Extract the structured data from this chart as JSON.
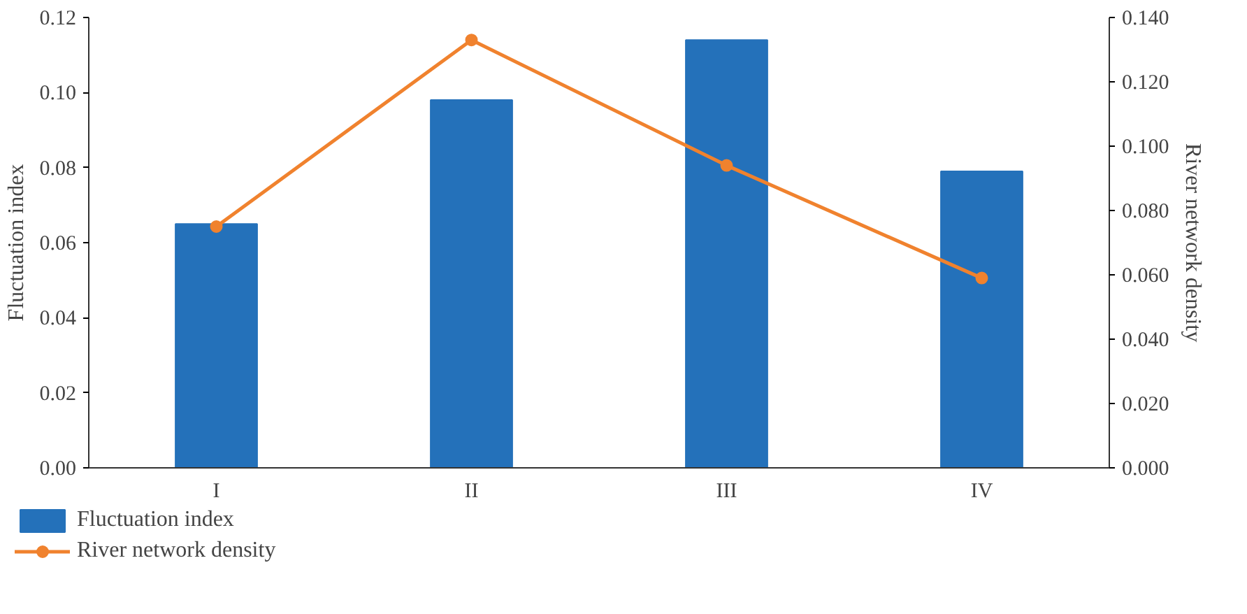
{
  "chart_data": {
    "type": "bar",
    "categories": [
      "I",
      "II",
      "III",
      "IV"
    ],
    "ylabel": "Fluctuation index",
    "y2label": "River network density",
    "ylim": [
      0,
      0.12
    ],
    "yticks": [
      {
        "value": 0,
        "label": "0.00"
      },
      {
        "value": 0.02,
        "label": "0.02"
      },
      {
        "value": 0.04,
        "label": "0.04"
      },
      {
        "value": 0.06,
        "label": "0.06"
      },
      {
        "value": 0.08,
        "label": "0.08"
      },
      {
        "value": 0.1,
        "label": "0.10"
      },
      {
        "value": 0.12,
        "label": "0.12"
      }
    ],
    "y2lim": [
      0,
      0.14
    ],
    "y2ticks": [
      {
        "value": 0,
        "label": "0.000"
      },
      {
        "value": 0.02,
        "label": "0.020"
      },
      {
        "value": 0.04,
        "label": "0.040"
      },
      {
        "value": 0.06,
        "label": "0.060"
      },
      {
        "value": 0.08,
        "label": "0.080"
      },
      {
        "value": 0.1,
        "label": "0.100"
      },
      {
        "value": 0.12,
        "label": "0.120"
      },
      {
        "value": 0.14,
        "label": "0.140"
      }
    ],
    "series": [
      {
        "name": "Fluctuation index",
        "color": "#2471ba",
        "values": [
          0.065,
          0.098,
          0.114,
          0.079
        ]
      },
      {
        "name": "River network density",
        "type": "line",
        "axis": "y2",
        "color": "#f0822e",
        "values": [
          0.075,
          0.133,
          0.094,
          0.059
        ]
      }
    ],
    "marker": "circle",
    "legend": "bottom left",
    "grid": false
  }
}
